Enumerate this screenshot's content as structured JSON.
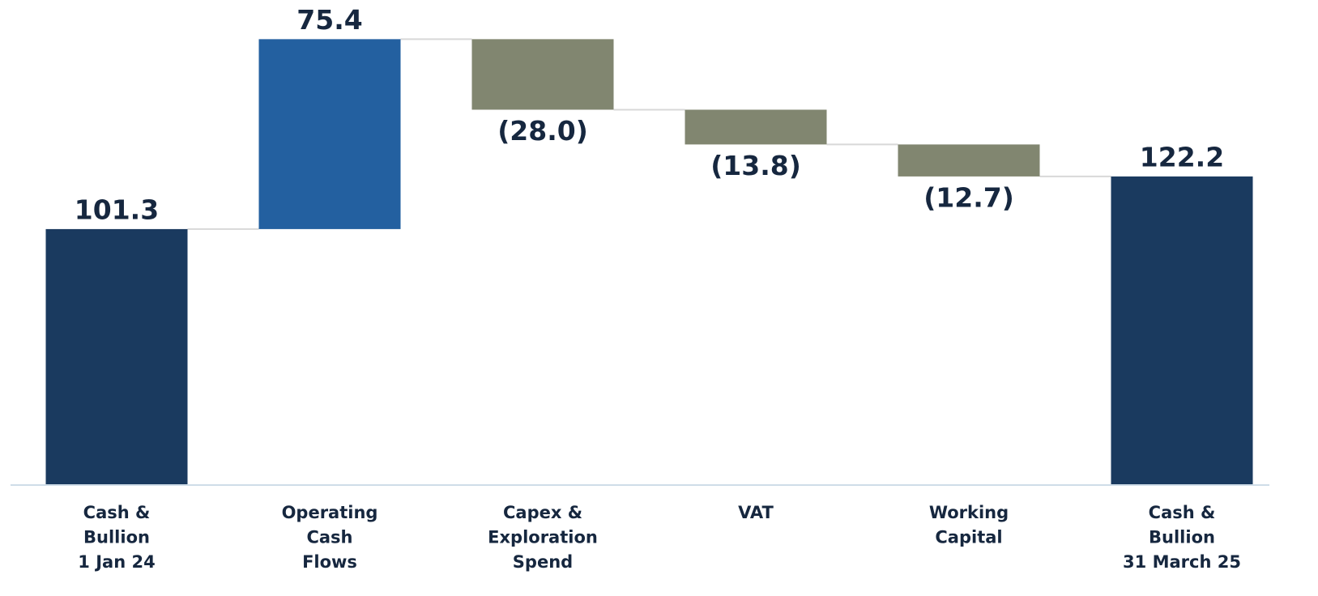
{
  "chart_data": {
    "type": "waterfall",
    "categories": [
      [
        "Cash &",
        "Bullion",
        "1 Jan 24"
      ],
      [
        "Operating",
        "Cash",
        "Flows"
      ],
      [
        "Capex &",
        "Exploration",
        "Spend"
      ],
      [
        "VAT"
      ],
      [
        "Working",
        "Capital"
      ],
      [
        "Cash &",
        "Bullion",
        "31 March 25"
      ]
    ],
    "values": [
      101.3,
      75.4,
      -28.0,
      -13.8,
      -12.7,
      122.2
    ],
    "value_labels": [
      "101.3",
      "75.4",
      "(28.0)",
      "(13.8)",
      "(12.7)",
      "122.2"
    ],
    "measure": [
      "absolute",
      "relative",
      "relative",
      "relative",
      "relative",
      "total"
    ],
    "colors": {
      "total": "#1a3a5f",
      "increase": "#2360a0",
      "decrease": "#818670"
    },
    "ylim": [
      0,
      190
    ]
  }
}
